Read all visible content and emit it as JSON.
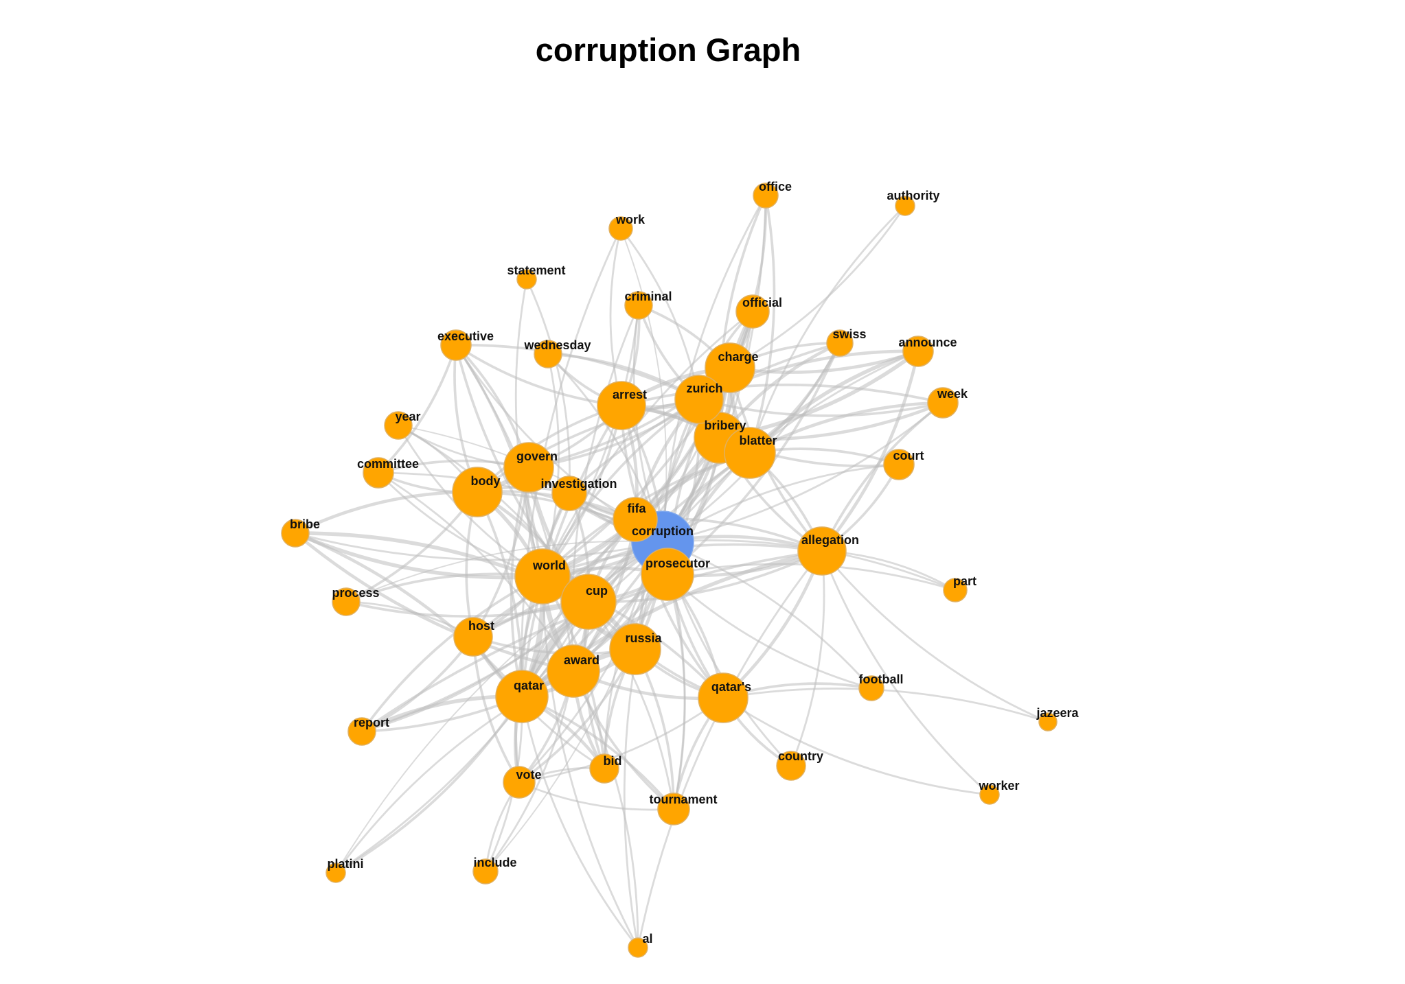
{
  "title": "corruption Graph",
  "colors": {
    "node": "#FFA500",
    "center_node": "#6495ED",
    "edge": "#BEBEBE",
    "node_stroke": "#E0B060",
    "label": "#111111"
  },
  "graph": {
    "center": "corruption",
    "nodes": [
      {
        "id": "corruption"
      },
      {
        "id": "fifa"
      },
      {
        "id": "prosecutor"
      },
      {
        "id": "world"
      },
      {
        "id": "cup"
      },
      {
        "id": "award"
      },
      {
        "id": "qatar"
      },
      {
        "id": "russia"
      },
      {
        "id": "qatar's"
      },
      {
        "id": "allegation"
      },
      {
        "id": "bribery"
      },
      {
        "id": "blatter"
      },
      {
        "id": "charge"
      },
      {
        "id": "zurich"
      },
      {
        "id": "arrest"
      },
      {
        "id": "govern"
      },
      {
        "id": "body"
      },
      {
        "id": "investigation"
      },
      {
        "id": "host"
      },
      {
        "id": "vote"
      },
      {
        "id": "bid"
      },
      {
        "id": "tournament"
      },
      {
        "id": "country"
      },
      {
        "id": "football"
      },
      {
        "id": "official"
      },
      {
        "id": "office"
      },
      {
        "id": "authority"
      },
      {
        "id": "work"
      },
      {
        "id": "statement"
      },
      {
        "id": "criminal"
      },
      {
        "id": "executive"
      },
      {
        "id": "wednesday"
      },
      {
        "id": "swiss"
      },
      {
        "id": "announce"
      },
      {
        "id": "week"
      },
      {
        "id": "court"
      },
      {
        "id": "year"
      },
      {
        "id": "committee"
      },
      {
        "id": "bribe"
      },
      {
        "id": "process"
      },
      {
        "id": "part"
      },
      {
        "id": "report"
      },
      {
        "id": "jazeera"
      },
      {
        "id": "worker"
      },
      {
        "id": "platini"
      },
      {
        "id": "include"
      },
      {
        "id": "al"
      }
    ],
    "edges": [
      [
        "corruption",
        "fifa",
        5
      ],
      [
        "corruption",
        "prosecutor",
        5
      ],
      [
        "corruption",
        "world",
        4
      ],
      [
        "corruption",
        "cup",
        4
      ],
      [
        "corruption",
        "award",
        4
      ],
      [
        "corruption",
        "qatar",
        4
      ],
      [
        "corruption",
        "russia",
        4
      ],
      [
        "corruption",
        "qatar's",
        3
      ],
      [
        "corruption",
        "allegation",
        4
      ],
      [
        "corruption",
        "bribery",
        4
      ],
      [
        "corruption",
        "blatter",
        4
      ],
      [
        "corruption",
        "charge",
        3
      ],
      [
        "corruption",
        "zurich",
        3
      ],
      [
        "corruption",
        "arrest",
        3
      ],
      [
        "corruption",
        "govern",
        3
      ],
      [
        "corruption",
        "body",
        3
      ],
      [
        "corruption",
        "investigation",
        3
      ],
      [
        "corruption",
        "host",
        3
      ],
      [
        "corruption",
        "vote",
        2
      ],
      [
        "corruption",
        "bid",
        2
      ],
      [
        "corruption",
        "tournament",
        2
      ],
      [
        "corruption",
        "country",
        2
      ],
      [
        "corruption",
        "football",
        2
      ],
      [
        "corruption",
        "official",
        3
      ],
      [
        "corruption",
        "office",
        2
      ],
      [
        "corruption",
        "swiss",
        2
      ],
      [
        "corruption",
        "announce",
        2
      ],
      [
        "corruption",
        "week",
        2
      ],
      [
        "corruption",
        "court",
        2
      ],
      [
        "corruption",
        "work",
        1
      ],
      [
        "corruption",
        "criminal",
        2
      ],
      [
        "corruption",
        "wednesday",
        2
      ],
      [
        "corruption",
        "executive",
        2
      ],
      [
        "corruption",
        "committee",
        2
      ],
      [
        "corruption",
        "bribe",
        2
      ],
      [
        "corruption",
        "process",
        1
      ],
      [
        "corruption",
        "report",
        2
      ],
      [
        "corruption",
        "al",
        2
      ],
      [
        "corruption",
        "include",
        1
      ],
      [
        "corruption",
        "platini",
        1
      ],
      [
        "corruption",
        "part",
        2
      ],
      [
        "corruption",
        "year",
        1
      ],
      [
        "world",
        "cup",
        9
      ],
      [
        "world",
        "award",
        7
      ],
      [
        "world",
        "qatar",
        8
      ],
      [
        "world",
        "russia",
        6
      ],
      [
        "cup",
        "award",
        8
      ],
      [
        "cup",
        "qatar",
        8
      ],
      [
        "cup",
        "russia",
        6
      ],
      [
        "award",
        "qatar",
        9
      ],
      [
        "award",
        "russia",
        7
      ],
      [
        "qatar",
        "russia",
        5
      ],
      [
        "world",
        "host",
        4
      ],
      [
        "cup",
        "host",
        4
      ],
      [
        "qatar",
        "host",
        4
      ],
      [
        "award",
        "bid",
        4
      ],
      [
        "qatar",
        "bid",
        4
      ],
      [
        "qatar",
        "vote",
        4
      ],
      [
        "award",
        "vote",
        3
      ],
      [
        "world",
        "vote",
        3
      ],
      [
        "qatar",
        "tournament",
        3
      ],
      [
        "qatar's",
        "tournament",
        3
      ],
      [
        "qatar's",
        "football",
        3
      ],
      [
        "qatar's",
        "country",
        3
      ],
      [
        "qatar's",
        "award",
        4
      ],
      [
        "qatar's",
        "world",
        3
      ],
      [
        "qatar's",
        "cup",
        3
      ],
      [
        "qatar's",
        "worker",
        2
      ],
      [
        "qatar's",
        "jazeera",
        2
      ],
      [
        "qatar",
        "report",
        5
      ],
      [
        "qatar",
        "platini",
        3
      ],
      [
        "qatar",
        "al",
        2
      ],
      [
        "award",
        "include",
        2
      ],
      [
        "vote",
        "include",
        2
      ],
      [
        "qatar",
        "include",
        2
      ],
      [
        "award",
        "tournament",
        3
      ],
      [
        "cup",
        "tournament",
        2
      ],
      [
        "allegation",
        "qatar",
        5
      ],
      [
        "allegation",
        "qatar's",
        4
      ],
      [
        "allegation",
        "world",
        3
      ],
      [
        "allegation",
        "cup",
        3
      ],
      [
        "allegation",
        "report",
        3
      ],
      [
        "allegation",
        "bribery",
        3
      ],
      [
        "allegation",
        "announce",
        4
      ],
      [
        "allegation",
        "week",
        3
      ],
      [
        "allegation",
        "court",
        3
      ],
      [
        "allegation",
        "part",
        2
      ],
      [
        "allegation",
        "worker",
        2
      ],
      [
        "allegation",
        "country",
        2
      ],
      [
        "allegation",
        "jazeera",
        2
      ],
      [
        "allegation",
        "charge",
        3
      ],
      [
        "allegation",
        "blatter",
        3
      ],
      [
        "bribery",
        "blatter",
        6
      ],
      [
        "bribery",
        "charge",
        6
      ],
      [
        "bribery",
        "zurich",
        6
      ],
      [
        "bribery",
        "arrest",
        5
      ],
      [
        "blatter",
        "charge",
        5
      ],
      [
        "blatter",
        "zurich",
        5
      ],
      [
        "charge",
        "zurich",
        6
      ],
      [
        "charge",
        "arrest",
        5
      ],
      [
        "zurich",
        "arrest",
        6
      ],
      [
        "blatter",
        "arrest",
        4
      ],
      [
        "bribery",
        "official",
        4
      ],
      [
        "charge",
        "official",
        4
      ],
      [
        "zurich",
        "official",
        3
      ],
      [
        "blatter",
        "office",
        3
      ],
      [
        "bribery",
        "office",
        3
      ],
      [
        "charge",
        "office",
        3
      ],
      [
        "blatter",
        "authority",
        2
      ],
      [
        "charge",
        "authority",
        2
      ],
      [
        "bribery",
        "swiss",
        4
      ],
      [
        "blatter",
        "swiss",
        4
      ],
      [
        "charge",
        "swiss",
        3
      ],
      [
        "bribery",
        "announce",
        5
      ],
      [
        "blatter",
        "announce",
        5
      ],
      [
        "charge",
        "announce",
        4
      ],
      [
        "zurich",
        "announce",
        4
      ],
      [
        "bribery",
        "week",
        4
      ],
      [
        "blatter",
        "week",
        4
      ],
      [
        "zurich",
        "week",
        3
      ],
      [
        "arrest",
        "week",
        3
      ],
      [
        "bribery",
        "court",
        3
      ],
      [
        "blatter",
        "court",
        3
      ],
      [
        "arrest",
        "criminal",
        3
      ],
      [
        "zurich",
        "criminal",
        3
      ],
      [
        "charge",
        "criminal",
        3
      ],
      [
        "arrest",
        "work",
        2
      ],
      [
        "zurich",
        "work",
        2
      ],
      [
        "arrest",
        "wednesday",
        3
      ],
      [
        "zurich",
        "wednesday",
        3
      ],
      [
        "arrest",
        "executive",
        3
      ],
      [
        "zurich",
        "executive",
        3
      ],
      [
        "govern",
        "body",
        6
      ],
      [
        "govern",
        "investigation",
        4
      ],
      [
        "body",
        "investigation",
        3
      ],
      [
        "govern",
        "world",
        5
      ],
      [
        "body",
        "world",
        5
      ],
      [
        "govern",
        "cup",
        4
      ],
      [
        "body",
        "cup",
        4
      ],
      [
        "govern",
        "qatar",
        3
      ],
      [
        "body",
        "qatar",
        3
      ],
      [
        "govern",
        "arrest",
        3
      ],
      [
        "body",
        "arrest",
        3
      ],
      [
        "govern",
        "zurich",
        3
      ],
      [
        "body",
        "zurich",
        3
      ],
      [
        "govern",
        "charge",
        3
      ],
      [
        "body",
        "executive",
        3
      ],
      [
        "govern",
        "executive",
        3
      ],
      [
        "body",
        "committee",
        3
      ],
      [
        "govern",
        "committee",
        3
      ],
      [
        "executive",
        "committee",
        3
      ],
      [
        "body",
        "year",
        2
      ],
      [
        "govern",
        "year",
        2
      ],
      [
        "body",
        "bribe",
        4
      ],
      [
        "world",
        "bribe",
        5
      ],
      [
        "cup",
        "bribe",
        5
      ],
      [
        "award",
        "bribe",
        4
      ],
      [
        "qatar",
        "bribe",
        4
      ],
      [
        "body",
        "process",
        3
      ],
      [
        "world",
        "process",
        3
      ],
      [
        "cup",
        "process",
        3
      ],
      [
        "host",
        "process",
        2
      ],
      [
        "host",
        "report",
        3
      ],
      [
        "host",
        "vote",
        3
      ],
      [
        "host",
        "body",
        3
      ],
      [
        "host",
        "govern",
        3
      ],
      [
        "russia",
        "vote",
        3
      ],
      [
        "russia",
        "bid",
        3
      ],
      [
        "russia",
        "tournament",
        3
      ],
      [
        "russia",
        "qatar's",
        3
      ],
      [
        "russia",
        "host",
        3
      ],
      [
        "prosecutor",
        "world",
        4
      ],
      [
        "prosecutor",
        "cup",
        4
      ],
      [
        "prosecutor",
        "award",
        4
      ],
      [
        "prosecutor",
        "qatar",
        4
      ],
      [
        "prosecutor",
        "russia",
        4
      ],
      [
        "prosecutor",
        "qatar's",
        3
      ],
      [
        "prosecutor",
        "allegation",
        4
      ],
      [
        "prosecutor",
        "blatter",
        4
      ],
      [
        "prosecutor",
        "bribery",
        4
      ],
      [
        "prosecutor",
        "charge",
        3
      ],
      [
        "prosecutor",
        "zurich",
        3
      ],
      [
        "prosecutor",
        "arrest",
        3
      ],
      [
        "prosecutor",
        "swiss",
        3
      ],
      [
        "prosecutor",
        "part",
        2
      ],
      [
        "prosecutor",
        "football",
        2
      ],
      [
        "prosecutor",
        "tournament",
        2
      ],
      [
        "prosecutor",
        "office",
        2
      ],
      [
        "fifa",
        "world",
        4
      ],
      [
        "fifa",
        "cup",
        4
      ],
      [
        "fifa",
        "award",
        4
      ],
      [
        "fifa",
        "qatar",
        4
      ],
      [
        "fifa",
        "russia",
        4
      ],
      [
        "fifa",
        "arrest",
        4
      ],
      [
        "fifa",
        "zurich",
        4
      ],
      [
        "fifa",
        "bribery",
        4
      ],
      [
        "fifa",
        "blatter",
        4
      ],
      [
        "fifa",
        "charge",
        3
      ],
      [
        "fifa",
        "govern",
        3
      ],
      [
        "fifa",
        "body",
        3
      ],
      [
        "fifa",
        "investigation",
        3
      ],
      [
        "fifa",
        "official",
        3
      ],
      [
        "fifa",
        "host",
        3
      ],
      [
        "fifa",
        "qatar's",
        3
      ],
      [
        "fifa",
        "allegation",
        3
      ],
      [
        "investigation",
        "world",
        3
      ],
      [
        "investigation",
        "cup",
        3
      ],
      [
        "investigation",
        "qatar",
        3
      ],
      [
        "investigation",
        "swiss",
        3
      ],
      [
        "investigation",
        "statement",
        2
      ],
      [
        "wednesday",
        "world",
        2
      ],
      [
        "statement",
        "world",
        2
      ],
      [
        "executive",
        "world",
        3
      ],
      [
        "executive",
        "cup",
        3
      ],
      [
        "executive",
        "award",
        2
      ],
      [
        "year",
        "world",
        2
      ],
      [
        "year",
        "cup",
        2
      ],
      [
        "committee",
        "world",
        2
      ],
      [
        "committee",
        "award",
        2
      ],
      [
        "official",
        "world",
        2
      ],
      [
        "official",
        "cup",
        2
      ],
      [
        "work",
        "qatar",
        2
      ],
      [
        "criminal",
        "world",
        2
      ],
      [
        "criminal",
        "award",
        2
      ],
      [
        "qatar's",
        "vote",
        2
      ],
      [
        "allegation",
        "al",
        2
      ],
      [
        "vote",
        "bid",
        2
      ],
      [
        "vote",
        "tournament",
        2
      ],
      [
        "award",
        "report",
        3
      ],
      [
        "world",
        "report",
        3
      ],
      [
        "cup",
        "report",
        3
      ],
      [
        "award",
        "platini",
        2
      ],
      [
        "cup",
        "platini",
        2
      ],
      [
        "world",
        "al",
        2
      ],
      [
        "award",
        "al",
        2
      ],
      [
        "cup",
        "bid",
        3
      ],
      [
        "world",
        "bid",
        3
      ],
      [
        "host",
        "bid",
        2
      ],
      [
        "bribery",
        "qatar",
        3
      ],
      [
        "blatter",
        "qatar",
        3
      ],
      [
        "bribery",
        "world",
        3
      ],
      [
        "blatter",
        "world",
        3
      ],
      [
        "charge",
        "world",
        3
      ],
      [
        "zurich",
        "world",
        3
      ],
      [
        "arrest",
        "world",
        3
      ],
      [
        "arrest",
        "qatar",
        3
      ],
      [
        "zurich",
        "qatar",
        3
      ]
    ]
  }
}
